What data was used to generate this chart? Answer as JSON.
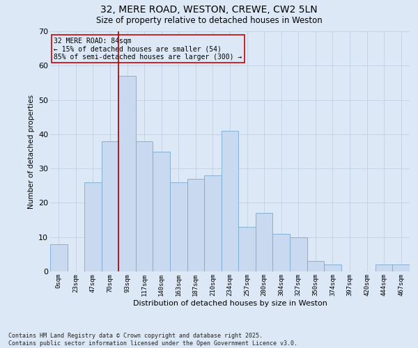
{
  "title_line1": "32, MERE ROAD, WESTON, CREWE, CW2 5LN",
  "title_line2": "Size of property relative to detached houses in Weston",
  "xlabel": "Distribution of detached houses by size in Weston",
  "ylabel": "Number of detached properties",
  "categories": [
    "0sqm",
    "23sqm",
    "47sqm",
    "70sqm",
    "93sqm",
    "117sqm",
    "140sqm",
    "163sqm",
    "187sqm",
    "210sqm",
    "234sqm",
    "257sqm",
    "280sqm",
    "304sqm",
    "327sqm",
    "350sqm",
    "374sqm",
    "397sqm",
    "420sqm",
    "444sqm",
    "467sqm"
  ],
  "values": [
    8,
    0,
    26,
    38,
    57,
    38,
    35,
    26,
    27,
    28,
    41,
    13,
    17,
    11,
    10,
    3,
    2,
    0,
    0,
    2,
    2
  ],
  "bar_color": "#c9d9f0",
  "bar_edge_color": "#7aaad0",
  "grid_color": "#bbccdd",
  "background_color": "#dce8f5",
  "vline_x_index": 4,
  "vline_color": "#aa0000",
  "annotation_text": "32 MERE ROAD: 84sqm\n← 15% of detached houses are smaller (54)\n85% of semi-detached houses are larger (300) →",
  "annotation_box_edge_color": "#cc0000",
  "ylim": [
    0,
    70
  ],
  "yticks": [
    0,
    10,
    20,
    30,
    40,
    50,
    60,
    70
  ],
  "footnote": "Contains HM Land Registry data © Crown copyright and database right 2025.\nContains public sector information licensed under the Open Government Licence v3.0."
}
